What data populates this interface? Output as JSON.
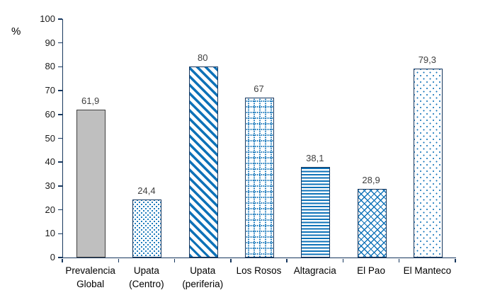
{
  "chart_data": {
    "type": "bar",
    "title": "",
    "ylabel": "%",
    "xlabel": "",
    "ylim": [
      0,
      100
    ],
    "yticks": [
      0,
      10,
      20,
      30,
      40,
      50,
      60,
      70,
      80,
      90,
      100
    ],
    "grid": false,
    "legend": false,
    "categories": [
      "Prevalencia\nGlobal",
      "Upata\n(Centro)",
      "Upata\n(periferia)",
      "Los Rosos",
      "Altagracia",
      "El Pao",
      "El Manteco"
    ],
    "values": [
      61.9,
      24.4,
      80,
      67,
      38.1,
      28.9,
      79.3
    ],
    "value_labels": [
      "61,9",
      "24,4",
      "80",
      "67",
      "38,1",
      "28,9",
      "79,3"
    ],
    "bar_patterns": [
      "solid-gray",
      "dots-dense",
      "diag-stripes",
      "dotted-grid",
      "horiz-stripes",
      "diag-brick",
      "dots-sparse"
    ],
    "colors": {
      "pattern_blue": "#0E72B8",
      "border_navy": "#17375E",
      "axis": "#17375E",
      "gray_fill": "#BFBFBF",
      "gray_border": "#3F3F3F",
      "value_label_text": "#404040",
      "tick_text": "#1A1A1A"
    }
  }
}
